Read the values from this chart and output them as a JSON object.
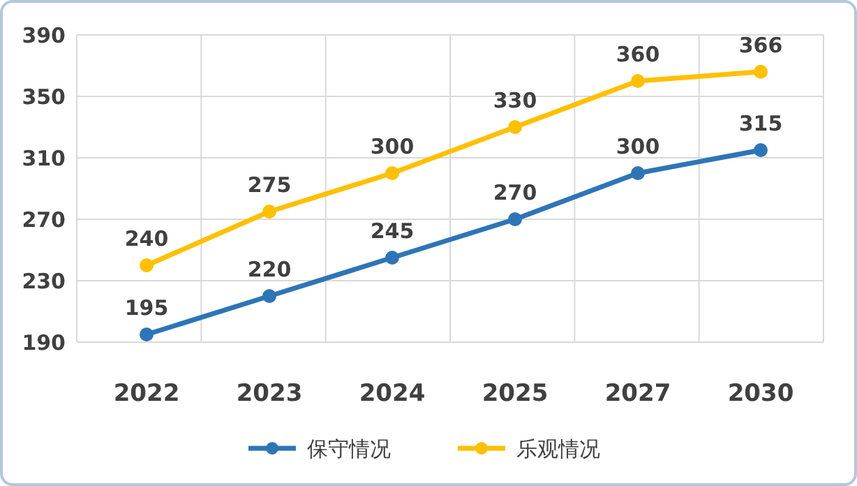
{
  "chart_data": {
    "type": "line",
    "categories": [
      "2022",
      "2023",
      "2024",
      "2025",
      "2027",
      "2030"
    ],
    "series": [
      {
        "name": "保守情况",
        "color": "#2e75b6",
        "values": [
          195,
          220,
          245,
          270,
          300,
          315
        ]
      },
      {
        "name": "乐观情况",
        "color": "#ffc000",
        "values": [
          240,
          275,
          300,
          330,
          360,
          366
        ]
      }
    ],
    "ylim": [
      190,
      390
    ],
    "yticks": [
      190,
      230,
      270,
      310,
      350,
      390
    ],
    "grid": true,
    "legend": "bottom",
    "marker": "circle",
    "data_labels": true
  }
}
